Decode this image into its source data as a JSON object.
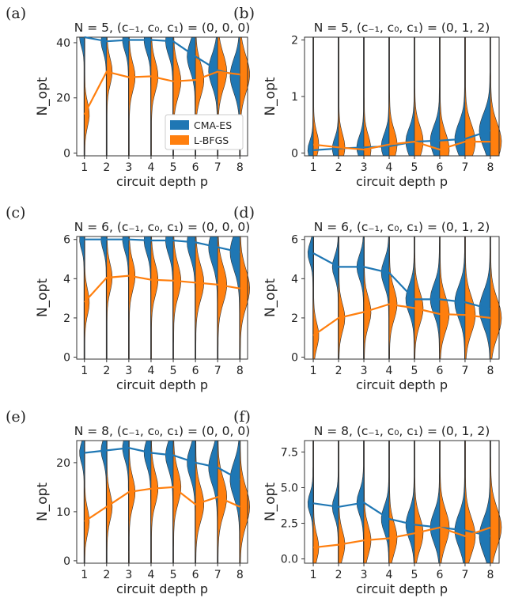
{
  "colors": {
    "cmaes": "#1f77b4",
    "lbfgs": "#ff7f0e",
    "axis": "#333333"
  },
  "chart_data": [
    {
      "panel": "(a)",
      "type": "line",
      "title": "N = 5, (c₋₁, c₀, c₁) = (0, 0, 0)",
      "xlabel": "circuit depth p",
      "ylabel": "N_opt",
      "x": [
        1,
        2,
        3,
        4,
        5,
        6,
        7,
        8
      ],
      "ylim": [
        -1,
        42
      ],
      "yticks": [
        0,
        20,
        40
      ],
      "series": [
        {
          "name": "CMA-ES",
          "values": [
            42,
            40.5,
            41,
            41,
            40.5,
            35,
            30,
            28
          ]
        },
        {
          "name": "L-BFGS",
          "values": [
            14,
            29.5,
            27.5,
            27.8,
            26,
            26.5,
            29.5,
            28.5
          ]
        }
      ],
      "legend": [
        "CMA-ES",
        "L-BFGS"
      ],
      "legend_position": "lower-right"
    },
    {
      "panel": "(b)",
      "type": "line",
      "title": "N = 5, (c₋₁, c₀, c₁) = (0, 1, 2)",
      "xlabel": "circuit depth p",
      "ylabel": "N_opt",
      "x": [
        1,
        2,
        3,
        4,
        5,
        6,
        7,
        8
      ],
      "ylim": [
        -0.05,
        2.05
      ],
      "yticks": [
        0,
        1,
        2
      ],
      "series": [
        {
          "name": "CMA-ES",
          "values": [
            0.05,
            0.08,
            0.1,
            0.12,
            0.2,
            0.22,
            0.25,
            0.4
          ]
        },
        {
          "name": "L-BFGS",
          "values": [
            0.15,
            0.1,
            0.06,
            0.15,
            0.2,
            0.06,
            0.2,
            0.2
          ]
        }
      ]
    },
    {
      "panel": "(c)",
      "type": "line",
      "title": "N = 6, (c₋₁, c₀, c₁) = (0, 0, 0)",
      "xlabel": "circuit depth p",
      "ylabel": "N_opt",
      "x": [
        1,
        2,
        3,
        4,
        5,
        6,
        7,
        8
      ],
      "ylim": [
        -0.1,
        6.15
      ],
      "yticks": [
        0,
        2,
        4,
        6
      ],
      "series": [
        {
          "name": "CMA-ES",
          "values": [
            6,
            6,
            6,
            5.95,
            5.95,
            5.85,
            5.6,
            5.35
          ]
        },
        {
          "name": "L-BFGS",
          "values": [
            2.8,
            4.05,
            4.15,
            3.95,
            3.9,
            3.8,
            3.7,
            3.5
          ]
        }
      ]
    },
    {
      "panel": "(d)",
      "type": "line",
      "title": "N = 6, (c₋₁, c₀, c₁) = (0, 1, 2)",
      "xlabel": "circuit depth p",
      "ylabel": "N_opt",
      "x": [
        1,
        2,
        3,
        4,
        5,
        6,
        7,
        8
      ],
      "ylim": [
        -0.1,
        6.15
      ],
      "yticks": [
        0,
        2,
        4,
        6
      ],
      "series": [
        {
          "name": "CMA-ES",
          "values": [
            5.3,
            4.6,
            4.6,
            4.3,
            2.95,
            2.95,
            2.8,
            2.45
          ]
        },
        {
          "name": "L-BFGS",
          "values": [
            1.1,
            2,
            2.3,
            2.7,
            2.5,
            2.2,
            2.15,
            2
          ]
        }
      ]
    },
    {
      "panel": "(e)",
      "type": "line",
      "title": "N = 8, (c₋₁, c₀, c₁) = (0, 0, 0)",
      "xlabel": "circuit depth p",
      "ylabel": "N_opt",
      "x": [
        1,
        2,
        3,
        4,
        5,
        6,
        7,
        8
      ],
      "ylim": [
        -0.5,
        24.5
      ],
      "yticks": [
        0,
        10,
        20
      ],
      "series": [
        {
          "name": "CMA-ES",
          "values": [
            22,
            22.5,
            23,
            22,
            21.5,
            20,
            19,
            16.5
          ]
        },
        {
          "name": "L-BFGS",
          "values": [
            8,
            11,
            14,
            14.7,
            15,
            11.5,
            13,
            11
          ]
        }
      ]
    },
    {
      "panel": "(f)",
      "type": "line",
      "title": "N = 8, (c₋₁, c₀, c₁) = (0, 1, 2)",
      "xlabel": "circuit depth p",
      "ylabel": "N_opt",
      "x": [
        1,
        2,
        3,
        4,
        5,
        6,
        7,
        8
      ],
      "ylim": [
        -0.3,
        8.3
      ],
      "yticks": [
        0.0,
        2.5,
        5.0,
        7.5
      ],
      "ytick_labels": [
        "0.0",
        "2.5",
        "5.0",
        "7.5"
      ],
      "series": [
        {
          "name": "CMA-ES",
          "values": [
            3.9,
            3.65,
            3.95,
            2.8,
            2.4,
            2.2,
            2,
            1.6
          ]
        },
        {
          "name": "L-BFGS",
          "values": [
            0.8,
            1,
            1.3,
            1.45,
            1.8,
            2.2,
            1.6,
            2.2
          ]
        }
      ]
    }
  ]
}
